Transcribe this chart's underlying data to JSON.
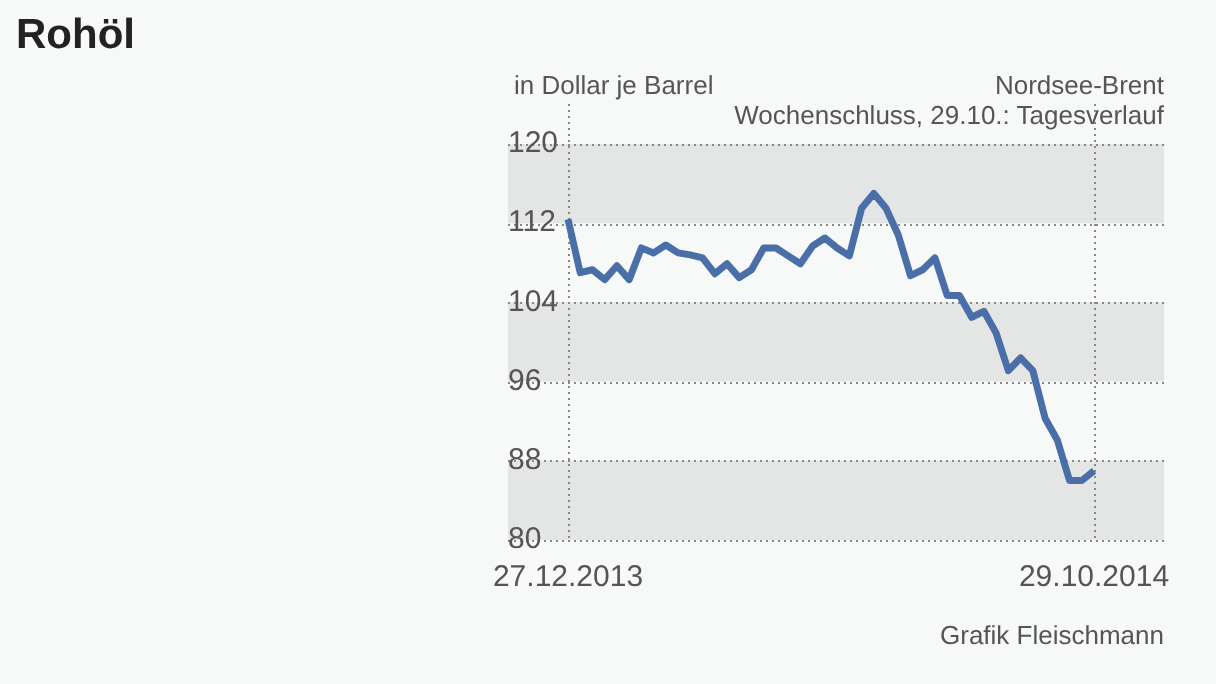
{
  "chart_data": {
    "type": "line",
    "title": "Rohöl",
    "subtitle": "Nordsee-Brent",
    "ylabel": "in Dollar je Barrel",
    "annotations": [
      "Wochenschluss, 29.10.: Tagesverlauf",
      "Grafik Fleischmann"
    ],
    "categories": [
      "27.12.2013",
      null,
      null,
      null,
      null,
      null,
      null,
      null,
      null,
      null,
      null,
      null,
      null,
      null,
      null,
      null,
      null,
      null,
      null,
      null,
      null,
      null,
      null,
      null,
      null,
      null,
      null,
      null,
      null,
      null,
      null,
      null,
      null,
      null,
      null,
      null,
      null,
      null,
      null,
      null,
      null,
      null,
      null,
      "29.10.2014"
    ],
    "series": [
      {
        "color": "#4a6fa8",
        "values": [
          112.4,
          107.0,
          107.3,
          106.3,
          107.7,
          106.3,
          109.5,
          109.0,
          109.8,
          109.0,
          108.8,
          108.5,
          106.9,
          107.9,
          106.5,
          107.3,
          109.5,
          109.5,
          108.7,
          107.9,
          109.7,
          110.5,
          109.5,
          108.7,
          113.5,
          115.0,
          113.5,
          110.8,
          106.7,
          107.3,
          108.5,
          104.7,
          104.7,
          102.5,
          103.1,
          100.9,
          97.1,
          98.4,
          97.1,
          92.3,
          90.1,
          86.0,
          86.0,
          87.0
        ]
      }
    ],
    "ylim": [
      80,
      120
    ],
    "yticks": [
      80,
      88,
      96,
      104,
      112,
      120
    ],
    "bands": [
      {
        "axis": "y",
        "from": 112,
        "to": 120,
        "color": "#e4e5e5"
      },
      {
        "axis": "y",
        "from": 96,
        "to": 104,
        "color": "#e4e5e5"
      },
      {
        "axis": "y",
        "from": 80,
        "to": 88,
        "color": "#e4e5e5"
      }
    ],
    "grid": true,
    "legend": false,
    "marker": "none",
    "line_style": "solid"
  }
}
